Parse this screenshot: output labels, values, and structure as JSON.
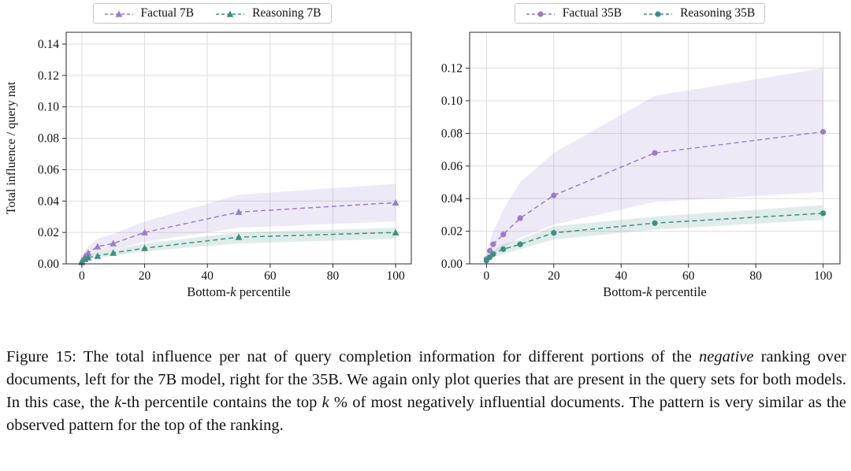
{
  "page": {
    "background": "#ffffff"
  },
  "figure": {
    "caption_segments": [
      {
        "text": "Figure 15: The total influence per nat of query completion information for different portions of the ",
        "italic": false
      },
      {
        "text": "negative",
        "italic": true
      },
      {
        "text": " ranking over documents, left for the 7B model, right for the 35B. We again only plot queries that are present in the query sets for both models. In this case, the ",
        "italic": false
      },
      {
        "text": "k",
        "italic": true
      },
      {
        "text": "-th percentile contains the top ",
        "italic": false
      },
      {
        "text": "k",
        "italic": true
      },
      {
        "text": " % of most negatively influential documents. The pattern is very similar as the observed pattern for the top of the ranking.",
        "italic": false
      }
    ]
  },
  "chart_data": [
    {
      "type": "line",
      "title": "",
      "xlabel": "Bottom-k percentile",
      "xlabel_segments": [
        {
          "text": "Bottom-",
          "italic": false
        },
        {
          "text": "k",
          "italic": true
        },
        {
          "text": " percentile",
          "italic": false
        }
      ],
      "ylabel": "Total influence / query nat",
      "xlim": [
        -5,
        105
      ],
      "ylim": [
        0,
        0.1475
      ],
      "xticks": [
        0,
        20,
        40,
        60,
        80,
        100
      ],
      "yticks": [
        0.0,
        0.02,
        0.04,
        0.06,
        0.08,
        0.1,
        0.12,
        0.14
      ],
      "grid": true,
      "legend_position": "top-center",
      "x": [
        0,
        1,
        2,
        5,
        10,
        20,
        50,
        100
      ],
      "series": [
        {
          "name": "Factual 7B",
          "color": "#9a7cc8",
          "marker": "triangle",
          "values": [
            0.002,
            0.005,
            0.007,
            0.011,
            0.013,
            0.02,
            0.033,
            0.039
          ],
          "band_upper": [
            0.003,
            0.008,
            0.011,
            0.016,
            0.019,
            0.027,
            0.044,
            0.051
          ],
          "band_lower": [
            0.001,
            0.003,
            0.004,
            0.007,
            0.009,
            0.014,
            0.023,
            0.027
          ]
        },
        {
          "name": "Reasoning 7B",
          "color": "#3f8e81",
          "marker": "triangle",
          "values": [
            0.001,
            0.003,
            0.004,
            0.005,
            0.007,
            0.01,
            0.017,
            0.02
          ],
          "band_upper": [
            0.002,
            0.004,
            0.006,
            0.007,
            0.009,
            0.013,
            0.02,
            0.023
          ],
          "band_lower": [
            0.0005,
            0.002,
            0.003,
            0.004,
            0.005,
            0.008,
            0.013,
            0.016
          ]
        }
      ]
    },
    {
      "type": "line",
      "title": "",
      "xlabel": "Bottom-k percentile",
      "xlabel_segments": [
        {
          "text": "Bottom-",
          "italic": false
        },
        {
          "text": "k",
          "italic": true
        },
        {
          "text": " percentile",
          "italic": false
        }
      ],
      "ylabel": "",
      "xlim": [
        -5,
        105
      ],
      "ylim": [
        0,
        0.142
      ],
      "xticks": [
        0,
        20,
        40,
        60,
        80,
        100
      ],
      "yticks": [
        0.0,
        0.02,
        0.04,
        0.06,
        0.08,
        0.1,
        0.12
      ],
      "grid": true,
      "legend_position": "top-center",
      "x": [
        0,
        1,
        2,
        5,
        10,
        20,
        50,
        100
      ],
      "series": [
        {
          "name": "Factual 35B",
          "color": "#9a7cc8",
          "marker": "circle",
          "values": [
            0.003,
            0.008,
            0.012,
            0.018,
            0.028,
            0.042,
            0.068,
            0.081
          ],
          "band_upper": [
            0.005,
            0.014,
            0.02,
            0.033,
            0.05,
            0.068,
            0.103,
            0.12
          ],
          "band_lower": [
            0.001,
            0.004,
            0.006,
            0.01,
            0.016,
            0.024,
            0.038,
            0.044
          ]
        },
        {
          "name": "Reasoning 35B",
          "color": "#3f8e81",
          "marker": "circle",
          "values": [
            0.002,
            0.004,
            0.006,
            0.009,
            0.012,
            0.019,
            0.025,
            0.031
          ],
          "band_upper": [
            0.003,
            0.006,
            0.008,
            0.012,
            0.015,
            0.023,
            0.029,
            0.036
          ],
          "band_lower": [
            0.001,
            0.003,
            0.004,
            0.006,
            0.009,
            0.015,
            0.021,
            0.027
          ]
        }
      ]
    }
  ]
}
